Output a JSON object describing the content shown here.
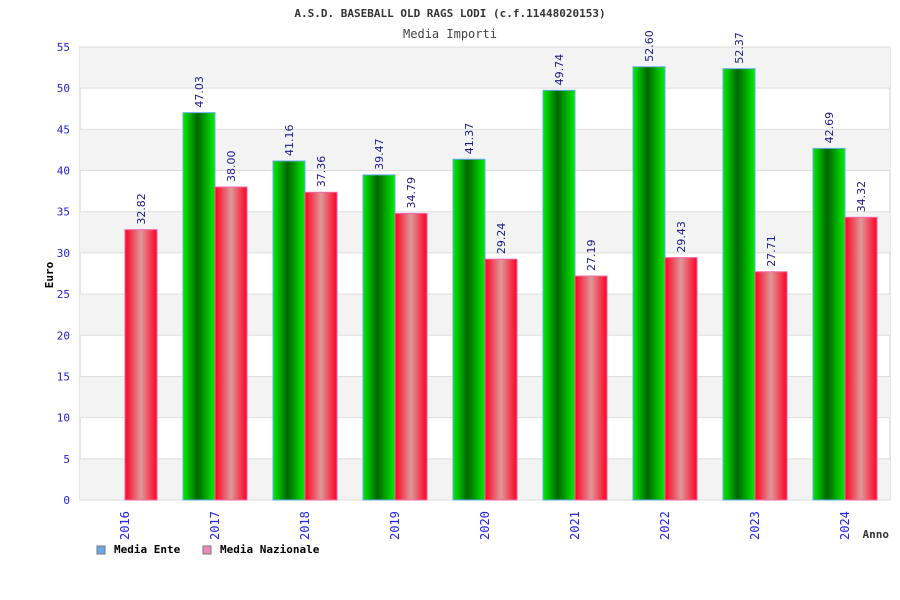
{
  "chart_data": {
    "type": "bar",
    "title": "A.S.D. BASEBALL OLD RAGS LODI (c.f.11448020153)",
    "subtitle": "Media Importi",
    "xlabel": "Anno",
    "ylabel": "Euro",
    "ylim": [
      0,
      55
    ],
    "yticks": [
      0,
      5,
      10,
      15,
      20,
      25,
      30,
      35,
      40,
      45,
      50,
      55
    ],
    "categories": [
      "2016",
      "2017",
      "2018",
      "2019",
      "2020",
      "2021",
      "2022",
      "2023",
      "2024"
    ],
    "series": [
      {
        "name": "Media Ente",
        "color": "#66aaee",
        "values": [
          null,
          47.03,
          41.16,
          39.47,
          41.37,
          49.74,
          52.6,
          52.37,
          42.69
        ],
        "labels": [
          "",
          "47.03",
          "41.16",
          "39.47",
          "41.37",
          "49.74",
          "52.60",
          "52.37",
          "42.69"
        ]
      },
      {
        "name": "Media Nazionale",
        "color": "#ee88bb",
        "values": [
          32.82,
          38.0,
          37.36,
          34.79,
          29.24,
          27.19,
          29.43,
          27.71,
          34.32
        ],
        "labels": [
          "32.82",
          "38.00",
          "37.36",
          "34.79",
          "29.24",
          "27.19",
          "29.43",
          "27.71",
          "34.32"
        ]
      }
    ],
    "grid": true,
    "legend": "bottom-left"
  }
}
